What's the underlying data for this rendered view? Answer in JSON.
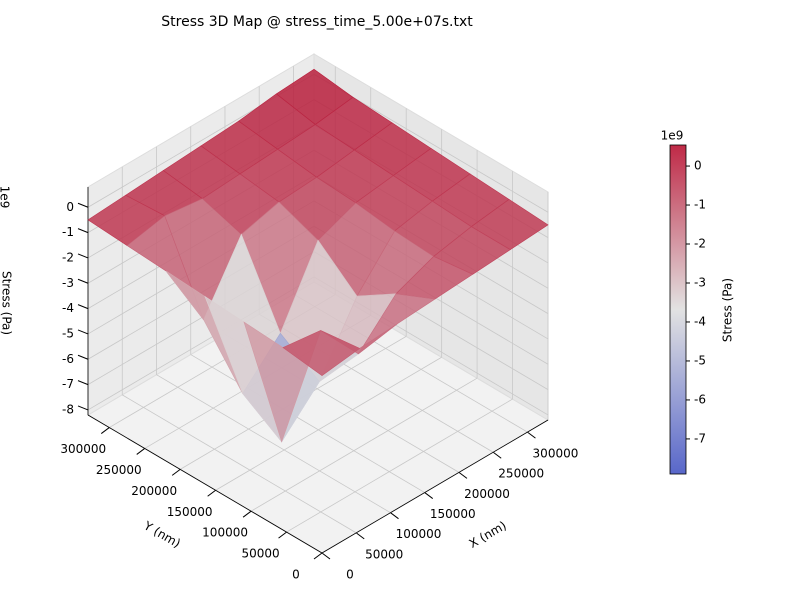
{
  "chart_data": {
    "type": "surface3d",
    "title": "Stress 3D Map @ stress_time_5.00e+07s.txt",
    "xlabel": "X (nm)",
    "ylabel": "Y (nm)",
    "zlabel": "Stress (Pa)",
    "z_offset_label": "1e9",
    "x": [
      0,
      55000,
      110000,
      165000,
      220000,
      275000,
      330000
    ],
    "y": [
      0,
      55000,
      110000,
      165000,
      220000,
      275000,
      330000
    ],
    "z": [
      [
        -1.2,
        -1.0,
        -0.9,
        -0.8,
        -0.7,
        -0.6,
        -0.5
      ],
      [
        -1.0,
        -1.2,
        -3.0,
        -1.5,
        -0.9,
        -0.6,
        -0.4
      ],
      [
        -0.9,
        -6.5,
        -5.0,
        -2.5,
        -0.8,
        -0.5,
        -0.3
      ],
      [
        -0.8,
        -5.5,
        -4.0,
        -1.2,
        -0.6,
        -0.4,
        -0.2
      ],
      [
        -0.7,
        -3.5,
        -1.0,
        -0.6,
        -0.5,
        -0.3,
        -0.1
      ],
      [
        -0.6,
        -0.3,
        -0.5,
        -0.4,
        -0.3,
        -0.2,
        0.0
      ],
      [
        -0.5,
        -0.4,
        -0.3,
        -0.2,
        -0.1,
        0.1,
        0.2
      ]
    ],
    "xlim": [
      0,
      330000
    ],
    "xticks": [
      0,
      50000,
      100000,
      150000,
      200000,
      250000,
      300000
    ],
    "ylim": [
      0,
      330000
    ],
    "yticks": [
      0,
      50000,
      100000,
      150000,
      200000,
      250000,
      300000
    ],
    "zlim": [
      -8.2,
      0.8
    ],
    "zticks": [
      -8,
      -7,
      -6,
      -5,
      -4,
      -3,
      -2,
      -1,
      0
    ],
    "colormap": [
      "#3b4cc0",
      "#dddddd",
      "#b40426"
    ],
    "colorbar": {
      "label": "Stress (Pa)",
      "offset_label": "1e9",
      "clim": [
        -7.9,
        0.54
      ],
      "ticks": [
        -7,
        -6,
        -5,
        -4,
        -3,
        -2,
        -1,
        0
      ]
    },
    "grid": true
  }
}
